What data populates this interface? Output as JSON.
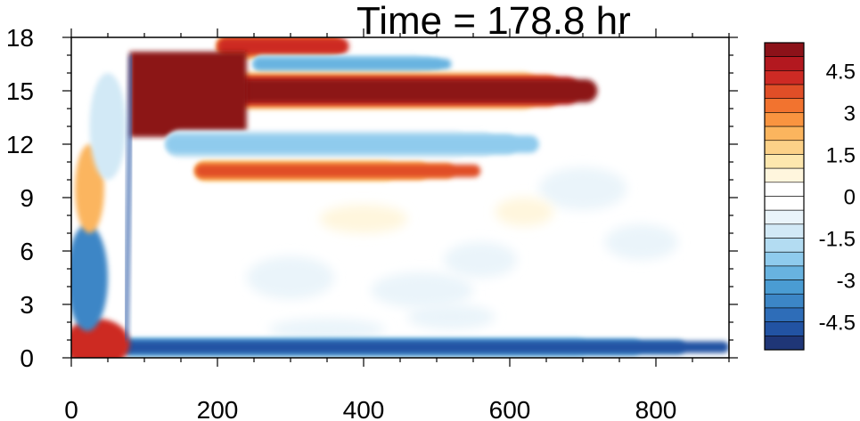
{
  "chart_data": {
    "type": "heatmap",
    "title": "Time = 178.8 hr",
    "xlabel": "",
    "ylabel": "",
    "xlim": [
      0,
      900
    ],
    "ylim": [
      0,
      18
    ],
    "x_ticks": [
      "0",
      "200",
      "400",
      "600",
      "800"
    ],
    "x_tick_values": [
      0,
      200,
      400,
      600,
      800
    ],
    "y_ticks": [
      "0",
      "3",
      "6",
      "9",
      "12",
      "15",
      "18"
    ],
    "y_tick_values": [
      0,
      3,
      6,
      9,
      12,
      15,
      18
    ],
    "colorbar": {
      "levels": [
        -5.5,
        -5,
        -4.5,
        -4,
        -3.5,
        -3,
        -2.5,
        -2,
        -1.5,
        -1,
        -0.5,
        0,
        0.5,
        1,
        1.5,
        2,
        2.5,
        3,
        3.5,
        4,
        4.5,
        5
      ],
      "colors": [
        "#1f3677",
        "#2253a3",
        "#2e6db8",
        "#3c86c6",
        "#4a9cd3",
        "#68b3e0",
        "#8fcbed",
        "#b3dcf2",
        "#d2e9f6",
        "#eaf4fa",
        "#ffffff",
        "#ffffff",
        "#fff6dd",
        "#fde7ae",
        "#fcd188",
        "#fbb55e",
        "#f99440",
        "#f2732f",
        "#e04e27",
        "#cd2a24",
        "#b3181f",
        "#8c1219"
      ],
      "label_values": [
        4.5,
        3,
        1.5,
        0,
        -1.5,
        -3,
        -4.5
      ],
      "labels": [
        "4.5",
        "3",
        "1.5",
        "0",
        "-1.5",
        "-3",
        "-4.5"
      ]
    },
    "features": [
      {
        "name": "lower-boundary-negative",
        "x": [
          70,
          900
        ],
        "y": 0.6,
        "value": -5
      },
      {
        "name": "upper-positive-band",
        "x": [
          75,
          720
        ],
        "y": 15.5,
        "value": 5
      },
      {
        "name": "negative-band-12",
        "x": [
          130,
          640
        ],
        "y": 12,
        "value": -2.5
      },
      {
        "name": "positive-band-10",
        "x": [
          170,
          560
        ],
        "y": 10.5,
        "value": 3.5
      },
      {
        "name": "negative-band-16",
        "x": [
          250,
          520
        ],
        "y": 16.5,
        "value": -3
      },
      {
        "name": "positive-band-top",
        "x": [
          200,
          380
        ],
        "y": 17.6,
        "value": 4
      },
      {
        "name": "left-edge-positive",
        "x": [
          0,
          90
        ],
        "y": 0.8,
        "value": 4
      },
      {
        "name": "left-edge-negative",
        "x": [
          0,
          60
        ],
        "y": 4.5,
        "value": -4
      }
    ]
  }
}
